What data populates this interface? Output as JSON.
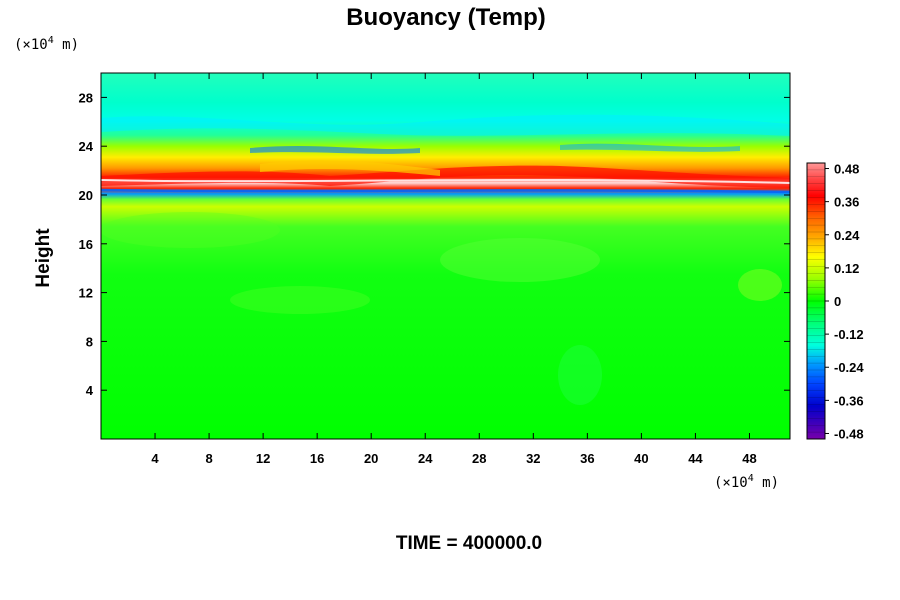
{
  "chart_data": {
    "type": "heatmap",
    "title": "Buoyancy (Temp)",
    "ylabel": "Height",
    "y_unit_prefix": "(×10",
    "y_unit_exp": "4",
    "y_unit_suffix": " m)",
    "x_unit_prefix": "(×10",
    "x_unit_exp": "4",
    "x_unit_suffix": " m)",
    "footer": "TIME = 400000.0",
    "xlim": [
      0,
      51
    ],
    "ylim": [
      0,
      30
    ],
    "x_ticks": [
      "4",
      "8",
      "12",
      "16",
      "20",
      "24",
      "28",
      "32",
      "36",
      "40",
      "44",
      "48"
    ],
    "y_ticks": [
      "4",
      "8",
      "12",
      "16",
      "20",
      "24",
      "28"
    ],
    "colorbar": {
      "vmin": -0.5,
      "vmax": 0.5,
      "labels": [
        "0.48",
        "0.36",
        "0.24",
        "0.12",
        "0",
        "-0.12",
        "-0.24",
        "-0.36",
        "-0.48"
      ]
    },
    "features": [
      {
        "description": "warm band",
        "y": 21.2,
        "value": 0.4
      },
      {
        "description": "cool band",
        "y": 20.3,
        "value": -0.3
      },
      {
        "description": "cool layer",
        "y": 25.5,
        "value": -0.15
      }
    ]
  },
  "colors": {
    "field_neutral": "#00ff00",
    "warm_max": "#ff0000",
    "cool_min": "#6600aa",
    "cyan_layer": "#00ffdd"
  }
}
